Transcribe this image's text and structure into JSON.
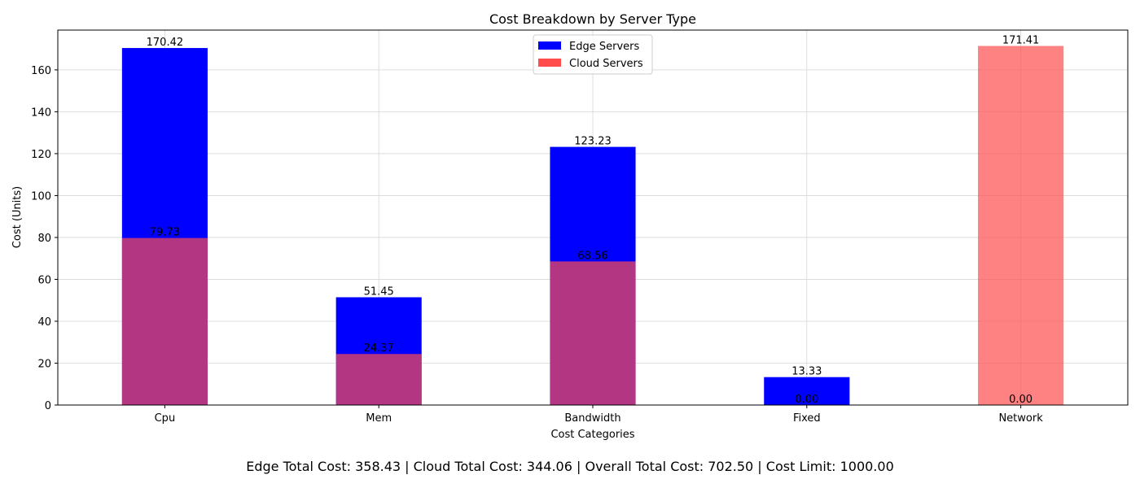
{
  "chart_data": {
    "type": "bar",
    "title": "Cost Breakdown by Server Type",
    "xlabel": "Cost Categories",
    "ylabel": "Cost (Units)",
    "categories": [
      "Cpu",
      "Mem",
      "Bandwidth",
      "Fixed",
      "Network"
    ],
    "series": [
      {
        "name": "Edge Servers",
        "color": "#0000ff",
        "values": [
          170.42,
          51.45,
          123.23,
          13.33,
          0.0
        ]
      },
      {
        "name": "Cloud Servers",
        "color": "#ff4d4d",
        "values": [
          79.73,
          24.37,
          68.56,
          0.0,
          171.41
        ]
      }
    ],
    "overlay_color": "#b0004c",
    "ylim": [
      0,
      178.98
    ],
    "yticks": [
      0,
      20,
      40,
      60,
      80,
      100,
      120,
      140,
      160
    ],
    "grid": true,
    "legend_position": "top-center"
  },
  "footer": {
    "text": "Edge Total Cost: 358.43  |  Cloud Total Cost: 344.06  |  Overall Total Cost: 702.50  |  Cost Limit: 1000.00"
  }
}
